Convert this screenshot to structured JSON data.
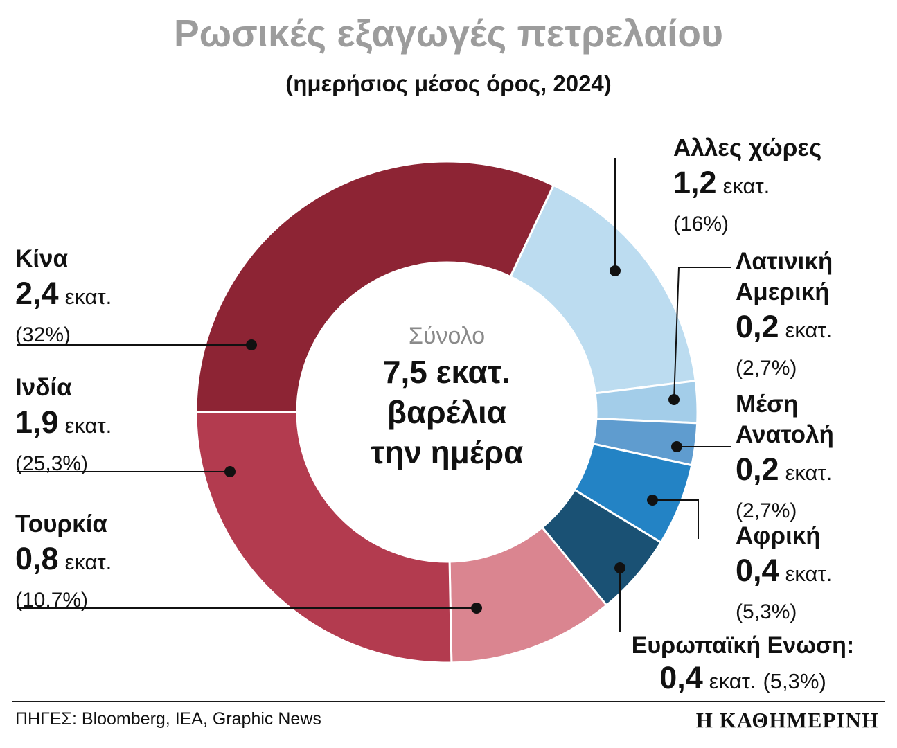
{
  "title": "Ρωσικές εξαγωγές πετρελαίου",
  "subtitle": "(ημερήσιος μέσος όρος, 2024)",
  "center": {
    "total_label": "Σύνολο",
    "line1": "7,5 εκατ.",
    "line2": "βαρέλια",
    "line3": "την ημέρα"
  },
  "footer": {
    "sources": "ΠΗΓΕΣ: Bloomberg, IEA, Graphic News",
    "brand": "Η ΚΑΘΗΜΕΡΙΝΗ"
  },
  "chart_data": {
    "type": "pie",
    "subtype": "donut",
    "title": "Ρωσικές εξαγωγές πετρελαίου",
    "subtitle": "(ημερήσιος μέσος όρος, 2024)",
    "total": {
      "label": "Σύνολο",
      "value": 7.5,
      "unit": "εκατ. βαρέλια την ημέρα"
    },
    "units": "εκατ. βαρέλια την ημέρα",
    "segments": [
      {
        "label": "Αλλες χώρες",
        "value": "1,2",
        "value_num": 1.2,
        "unit": "εκατ.",
        "percent": "(16%)",
        "pct_num": 16,
        "color": "#bcdcf0"
      },
      {
        "label": "Λατινική Αμερική",
        "value": "0,2",
        "value_num": 0.2,
        "unit": "εκατ.",
        "percent": "(2,7%)",
        "pct_num": 2.7,
        "color": "#a3cde9"
      },
      {
        "label": "Μέση Ανατολή",
        "value": "0,2",
        "value_num": 0.2,
        "unit": "εκατ.",
        "percent": "(2,7%)",
        "pct_num": 2.7,
        "color": "#5f9ccf"
      },
      {
        "label": "Αφρική",
        "value": "0,4",
        "value_num": 0.4,
        "unit": "εκατ.",
        "percent": "(5,3%)",
        "pct_num": 5.3,
        "color": "#2383c5"
      },
      {
        "label": "Ευρωπαϊκή Ενωση:",
        "value": "0,4",
        "value_num": 0.4,
        "unit": "εκατ.",
        "percent": "(5,3%)",
        "pct_num": 5.3,
        "color": "#1a5174"
      },
      {
        "label": "Τουρκία",
        "value": "0,8",
        "value_num": 0.8,
        "unit": "εκατ.",
        "percent": "(10,7%)",
        "pct_num": 10.7,
        "color": "#da8590"
      },
      {
        "label": "Ινδία",
        "value": "1,9",
        "value_num": 1.9,
        "unit": "εκατ.",
        "percent": "(25,3%)",
        "pct_num": 25.3,
        "color": "#b33b4f"
      },
      {
        "label": "Κίνα",
        "value": "2,4",
        "value_num": 2.4,
        "unit": "εκατ.",
        "percent": "(32%)",
        "pct_num": 32,
        "color": "#8d2434"
      }
    ],
    "legend_position": "callout-labels",
    "start_angle_deg_clockwise_from_top": 25.2
  }
}
